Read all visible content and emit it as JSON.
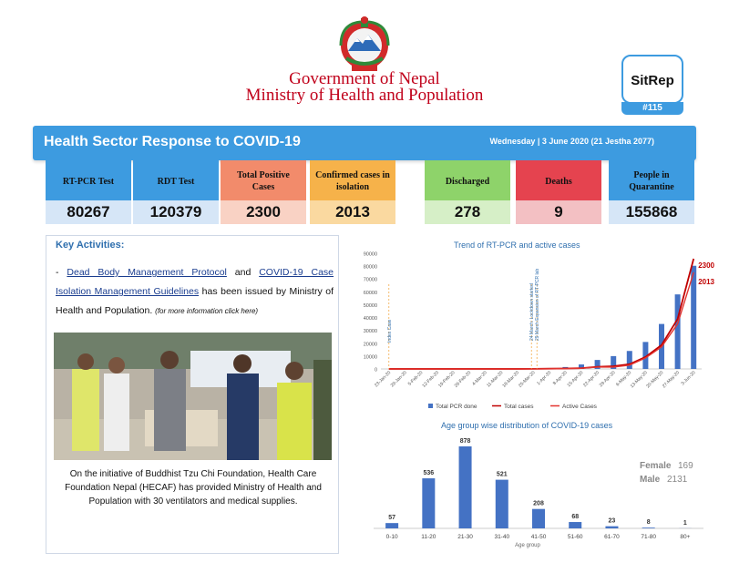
{
  "header": {
    "gov_line1": "Government of Nepal",
    "gov_line2": "Ministry of Health and Population",
    "sitrep_label": "SitRep",
    "sitrep_number": "#115"
  },
  "banner": {
    "title": "Health Sector Response to COVID-19",
    "date": "Wednesday | 3 June 2020 (21 Jestha 2077)"
  },
  "stats": [
    {
      "label": "RT-PCR Test",
      "value": "80267",
      "top_color": "#3d9be0",
      "bottom_color": "#d6e6f7"
    },
    {
      "label": "RDT Test",
      "value": "120379",
      "top_color": "#3d9be0",
      "bottom_color": "#d6e6f7"
    },
    {
      "label": "Total Positive Cases",
      "value": "2300",
      "top_color": "#f28b6b",
      "bottom_color": "#f9d2c4"
    },
    {
      "label": "Confirmed cases in isolation",
      "value": "2013",
      "top_color": "#f6b24a",
      "bottom_color": "#fad9a0"
    },
    {
      "label": "Discharged",
      "value": "278",
      "top_color": "#8ed36a",
      "bottom_color": "#d6efc7"
    },
    {
      "label": "Deaths",
      "value": "9",
      "top_color": "#e5434f",
      "bottom_color": "#f3c0c3"
    },
    {
      "label": "People in Quarantine",
      "value": "155868",
      "top_color": "#3d9be0",
      "bottom_color": "#d6e6f7"
    }
  ],
  "key_activities": {
    "title": "Key Activities:",
    "bullet": "-",
    "link1": "Dead Body Management Protocol",
    "and": "and",
    "link2": "COVID-19 Case Isolation Management Guidelines",
    "text": "has been issued by Ministry of Health and Population.",
    "note": "(for more information click here)",
    "caption": "On the initiative of Buddhist Tzu Chi Foundation, Health Care Foundation Nepal (HECAF) has provided Ministry of Health and Population with 30 ventilators and medical supplies."
  },
  "chart_data": [
    {
      "type": "bar",
      "title": "Trend of RT-PCR and active cases",
      "categories": [
        "23-Jan-20",
        "29-Jan-20",
        "5-Feb-20",
        "12-Feb-20",
        "19-Feb-20",
        "26-Feb-20",
        "4-Mar-20",
        "11-Mar-20",
        "18-Mar-20",
        "25-Mar-20",
        "1-Apr-20",
        "8-Apr-20",
        "15-Apr-20",
        "22-Apr-20",
        "29-Apr-20",
        "6-May-20",
        "13-May-20",
        "20-May-20",
        "27-May-20",
        "3-Jun-20"
      ],
      "ylim": [
        0,
        90000
      ],
      "yticks": [
        0,
        10000,
        20000,
        30000,
        40000,
        50000,
        60000,
        70000,
        80000,
        90000
      ],
      "series": [
        {
          "name": "Total PCR done",
          "kind": "bar",
          "color": "#4472c4",
          "values": [
            0,
            0,
            0,
            0,
            0,
            0,
            0,
            0,
            0,
            200,
            600,
            1500,
            3500,
            7000,
            10000,
            14000,
            21000,
            35000,
            58000,
            80267
          ]
        },
        {
          "name": "Total  cases",
          "kind": "line",
          "color": "#c00000",
          "values": [
            1,
            1,
            1,
            1,
            1,
            1,
            1,
            1,
            1,
            3,
            6,
            9,
            16,
            45,
            57,
            99,
            250,
            500,
            1042,
            2300
          ]
        },
        {
          "name": "Active Cases",
          "kind": "line",
          "color": "#e3342f",
          "values": [
            0,
            0,
            0,
            0,
            0,
            0,
            0,
            0,
            0,
            2,
            4,
            8,
            15,
            40,
            40,
            80,
            230,
            460,
            940,
            2013
          ]
        }
      ],
      "annotations": [
        "Index Case",
        "24 March: Lockdown started",
        "29 March Expansion of RT-PCR lab"
      ],
      "end_labels": [
        "2300",
        "2013"
      ]
    },
    {
      "type": "bar",
      "title": "Age group wise distribution of COVID-19 cases",
      "xlabel": "Age group",
      "categories": [
        "0-10",
        "11-20",
        "21-30",
        "31-40",
        "41-50",
        "51-60",
        "61-70",
        "71-80",
        "80+"
      ],
      "values": [
        57,
        536,
        878,
        521,
        208,
        68,
        23,
        8,
        1
      ],
      "color": "#4472c4",
      "female_label": "Female",
      "female_value": "169",
      "male_label": "Male",
      "male_value": "2131"
    }
  ]
}
